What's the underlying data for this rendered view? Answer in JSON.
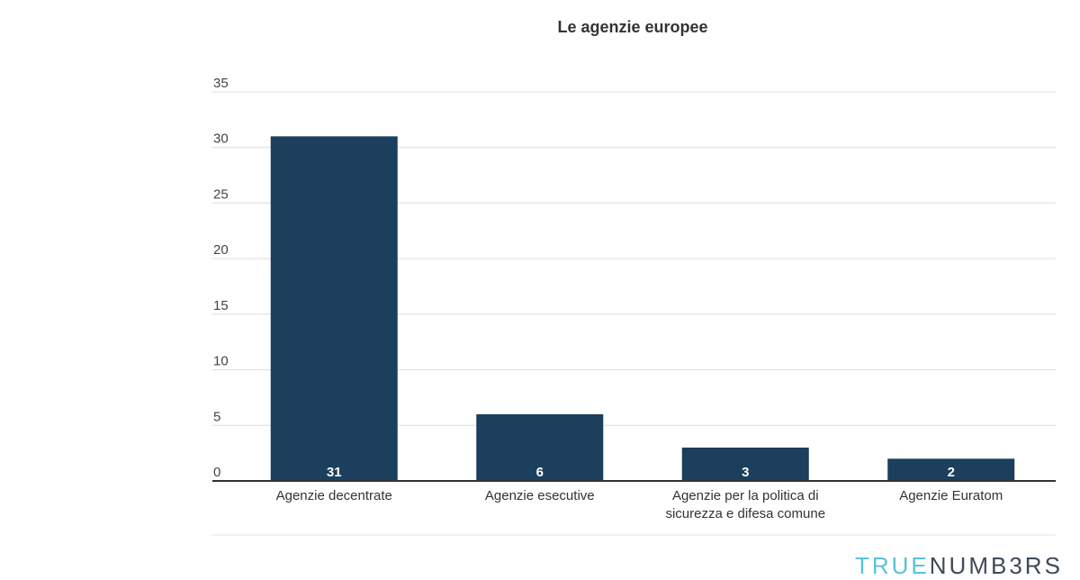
{
  "logo": {
    "part1": "TRUE",
    "part2": "NUMB3RS"
  },
  "chart_data": {
    "type": "bar",
    "title": "Le agenzie europee",
    "categories": [
      [
        "Agenzie decentrate"
      ],
      [
        "Agenzie esecutive"
      ],
      [
        "Agenzie per la politica di",
        "sicurezza e difesa comune"
      ],
      [
        "Agenzie Euratom"
      ]
    ],
    "values": [
      31,
      6,
      3,
      2
    ],
    "yticks": [
      0,
      5,
      10,
      15,
      20,
      25,
      30,
      35
    ],
    "ylim": [
      0,
      35
    ],
    "grid": true,
    "legend": "none",
    "bar_color": "#1b3f5c"
  }
}
